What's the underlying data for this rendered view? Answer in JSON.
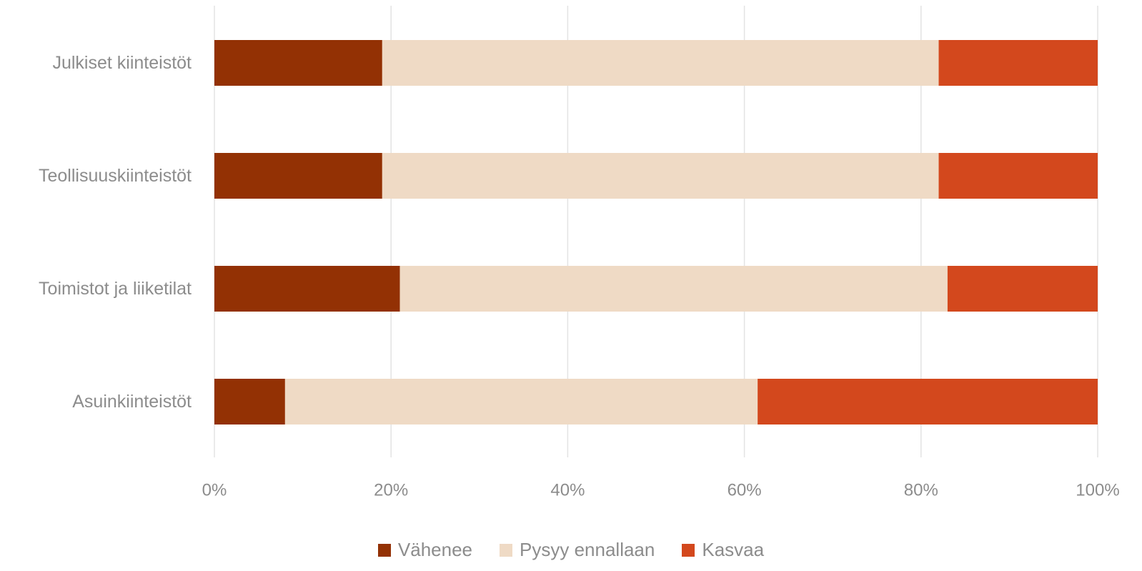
{
  "chart_data": {
    "type": "bar",
    "orientation": "horizontal",
    "stacked": "percent",
    "categories": [
      "Julkiset kiinteistöt",
      "Teollisuuskiinteistöt",
      "Toimistot ja liiketilat",
      "Asuinkiinteistöt"
    ],
    "series": [
      {
        "name": "Vähenee",
        "color": "#933104",
        "values": [
          19,
          19,
          21,
          8
        ]
      },
      {
        "name": "Pysyy ennallaan",
        "color": "#efdac5",
        "values": [
          63,
          63,
          62,
          53.5
        ]
      },
      {
        "name": "Kasvaa",
        "color": "#d3481d",
        "values": [
          18,
          18,
          17,
          38.5
        ]
      }
    ],
    "xlim": [
      0,
      100
    ],
    "x_ticks": [
      0,
      20,
      40,
      60,
      80,
      100
    ],
    "x_tick_labels": [
      "0%",
      "20%",
      "40%",
      "60%",
      "80%",
      "100%"
    ],
    "grid": "vertical",
    "legend_position": "bottom"
  }
}
